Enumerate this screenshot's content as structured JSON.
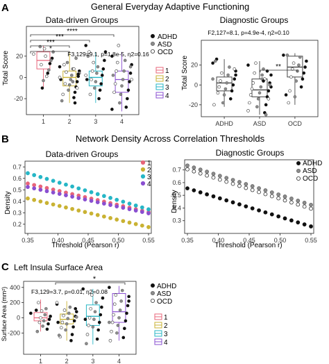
{
  "figure": {
    "panel_a": {
      "letter": "A",
      "heading": "General Everyday Adaptive Functioning",
      "left": {
        "title": "Data-driven Groups",
        "ylabel": "Total Score",
        "stats": "F3,129=9.1, p=1.8e-5, η2=0.16",
        "significance": [
          "****",
          "***",
          "***",
          "*"
        ]
      },
      "right": {
        "title": "Diagnostic Groups",
        "ylabel": "Total Score",
        "stats": "F2,127=8.1, p=4.9e-4, η2=0.10",
        "significance": [
          "**"
        ]
      }
    },
    "panel_b": {
      "letter": "B",
      "heading": "Network Density Across Correlation Thresholds",
      "left": {
        "title": "Data-driven Groups",
        "xlabel": "Threshold (Pearson r)",
        "ylabel": "Density"
      },
      "right": {
        "title": "Diagnostic Groups",
        "xlabel": "Threshold (Pearson r)",
        "ylabel": "Density"
      }
    },
    "panel_c": {
      "letter": "C",
      "heading": "Left Insula Surface Area",
      "ylabel": "Surface Area (mm²)",
      "stats": "F3,129=3.7, p=0.01, η2=0.08",
      "significance": [
        "*"
      ]
    },
    "legends": {
      "dx": [
        "ADHD",
        "ASD",
        "OCD"
      ],
      "groups": [
        "1",
        "2",
        "3",
        "4"
      ]
    },
    "colors": {
      "g1": "#e8657a",
      "g2": "#c9b233",
      "g3": "#26b6c6",
      "g4": "#8a4fd0",
      "adhd": "#111111",
      "asd": "#8c8c8c",
      "ocd": "#ffffff"
    }
  },
  "chart_data": [
    {
      "id": "A-left",
      "type": "box",
      "title": "Data-driven Groups",
      "ylabel": "Total Score",
      "categories": [
        "1",
        "2",
        "3",
        "4"
      ],
      "ylim": [
        -35,
        48
      ],
      "yticks": [
        -20,
        0,
        20
      ],
      "boxes": [
        {
          "group": "1",
          "q1": 8,
          "median": 16,
          "q3": 24,
          "min": -10,
          "max": 30
        },
        {
          "group": "2",
          "q1": -8,
          "median": 0,
          "q3": 6,
          "min": -24,
          "max": 24
        },
        {
          "group": "3",
          "q1": -8,
          "median": 0,
          "q3": 6,
          "min": -24,
          "max": 24
        },
        {
          "group": "4",
          "q1": -14,
          "median": -2,
          "q3": 6,
          "min": -32,
          "max": 24
        }
      ],
      "points": {
        "1": [
          [
            2,
            22
          ],
          [
            1,
            24
          ],
          [
            0,
            18
          ],
          [
            1,
            16
          ],
          [
            0,
            13
          ],
          [
            1,
            7
          ],
          [
            0,
            4
          ],
          [
            2,
            1
          ],
          [
            2,
            20
          ],
          [
            2,
            27
          ],
          [
            1,
            -3
          ],
          [
            0,
            -10
          ],
          [
            2,
            12
          ],
          [
            1,
            29
          ]
        ],
        "2": [
          [
            0,
            10
          ],
          [
            0,
            6
          ],
          [
            0,
            1
          ],
          [
            0,
            -4
          ],
          [
            0,
            -9
          ],
          [
            0,
            -14
          ],
          [
            0,
            -19
          ],
          [
            1,
            8
          ],
          [
            1,
            2
          ],
          [
            1,
            -2
          ],
          [
            1,
            -7
          ],
          [
            1,
            -12
          ],
          [
            1,
            14
          ],
          [
            2,
            5
          ],
          [
            2,
            -6
          ],
          [
            2,
            12
          ],
          [
            2,
            -16
          ],
          [
            1,
            -22
          ],
          [
            0,
            -2
          ],
          [
            2,
            0
          ],
          [
            1,
            4
          ],
          [
            0,
            3
          ],
          [
            2,
            -10
          ],
          [
            1,
            18
          ],
          [
            0,
            -24
          ],
          [
            2,
            8
          ],
          [
            1,
            -4
          ]
        ],
        "3": [
          [
            0,
            30
          ],
          [
            0,
            24
          ],
          [
            0,
            16
          ],
          [
            0,
            8
          ],
          [
            0,
            2
          ],
          [
            0,
            -6
          ],
          [
            0,
            -12
          ],
          [
            0,
            -20
          ],
          [
            1,
            10
          ],
          [
            1,
            4
          ],
          [
            1,
            -4
          ],
          [
            1,
            -10
          ],
          [
            2,
            14
          ],
          [
            2,
            6
          ],
          [
            2,
            -2
          ],
          [
            2,
            -16
          ],
          [
            2,
            24
          ],
          [
            1,
            20
          ],
          [
            0,
            -2
          ],
          [
            2,
            2
          ]
        ],
        "4": [
          [
            0,
            20
          ],
          [
            0,
            12
          ],
          [
            0,
            4
          ],
          [
            0,
            -4
          ],
          [
            0,
            -12
          ],
          [
            0,
            -20
          ],
          [
            0,
            -28
          ],
          [
            1,
            16
          ],
          [
            1,
            6
          ],
          [
            1,
            -2
          ],
          [
            1,
            -8
          ],
          [
            1,
            -16
          ],
          [
            1,
            -24
          ],
          [
            2,
            30
          ],
          [
            2,
            14
          ],
          [
            2,
            6
          ],
          [
            2,
            -6
          ],
          [
            2,
            -14
          ],
          [
            1,
            2
          ],
          [
            0,
            -30
          ],
          [
            2,
            -2
          ],
          [
            1,
            10
          ]
        ]
      }
    },
    {
      "id": "A-right",
      "type": "box",
      "title": "Diagnostic Groups",
      "ylabel": "Total Score",
      "categories": [
        "ADHD",
        "ASD",
        "OCD"
      ],
      "ylim": [
        -32,
        45
      ],
      "yticks": [
        -20,
        0,
        20
      ],
      "boxes": [
        {
          "group": "ADHD",
          "q1": -6,
          "median": 2,
          "q3": 8,
          "min": -22,
          "max": 26
        },
        {
          "group": "ASD",
          "q1": -12,
          "median": -5,
          "q3": 6,
          "min": -30,
          "max": 24
        },
        {
          "group": "OCD",
          "q1": 8,
          "median": 18,
          "q3": 29,
          "min": -20,
          "max": 32
        }
      ],
      "points": {
        "ADHD": [
          [
            0,
            22
          ],
          [
            0,
            14
          ],
          [
            0,
            6
          ],
          [
            0,
            0
          ],
          [
            0,
            -6
          ],
          [
            0,
            -14
          ],
          [
            1,
            18
          ],
          [
            1,
            10
          ],
          [
            1,
            2
          ],
          [
            1,
            -4
          ],
          [
            1,
            -10
          ],
          [
            1,
            -18
          ],
          [
            2,
            12
          ],
          [
            2,
            4
          ],
          [
            2,
            -2
          ],
          [
            2,
            -8
          ],
          [
            0,
            26
          ],
          [
            1,
            24
          ],
          [
            2,
            -20
          ],
          [
            1,
            6
          ],
          [
            0,
            10
          ],
          [
            2,
            16
          ]
        ],
        "ASD": [
          [
            0,
            20
          ],
          [
            0,
            10
          ],
          [
            0,
            2
          ],
          [
            0,
            -6
          ],
          [
            0,
            -12
          ],
          [
            0,
            -20
          ],
          [
            0,
            -28
          ],
          [
            1,
            16
          ],
          [
            1,
            6
          ],
          [
            1,
            -2
          ],
          [
            1,
            -8
          ],
          [
            1,
            -14
          ],
          [
            1,
            -22
          ],
          [
            2,
            22
          ],
          [
            2,
            12
          ],
          [
            2,
            2
          ],
          [
            2,
            -4
          ],
          [
            2,
            -10
          ],
          [
            2,
            -18
          ],
          [
            2,
            -26
          ],
          [
            0,
            -2
          ],
          [
            1,
            0
          ],
          [
            2,
            -14
          ],
          [
            0,
            14
          ],
          [
            1,
            -30
          ],
          [
            2,
            6
          ],
          [
            0,
            4
          ],
          [
            1,
            10
          ]
        ],
        "OCD": [
          [
            0,
            30
          ],
          [
            0,
            24
          ],
          [
            0,
            18
          ],
          [
            0,
            12
          ],
          [
            0,
            6
          ],
          [
            0,
            -2
          ],
          [
            1,
            28
          ],
          [
            1,
            20
          ],
          [
            1,
            14
          ],
          [
            1,
            4
          ],
          [
            1,
            -12
          ],
          [
            2,
            22
          ],
          [
            2,
            16
          ],
          [
            2,
            8
          ],
          [
            2,
            -6
          ],
          [
            2,
            -18
          ],
          [
            1,
            30
          ],
          [
            0,
            -10
          ]
        ]
      }
    },
    {
      "id": "B-left",
      "type": "scatter",
      "title": "Data-driven Groups",
      "xlabel": "Threshold (Pearson r)",
      "ylabel": "Density",
      "xlim": [
        0.35,
        0.55
      ],
      "xticks": [
        0.35,
        0.4,
        0.45,
        0.5,
        0.55
      ],
      "ylim": [
        0.12,
        0.75
      ],
      "yticks": [
        0.2,
        0.3,
        0.4,
        0.5,
        0.6,
        0.7
      ],
      "series": [
        {
          "name": "1",
          "start": 0.555,
          "end": 0.305
        },
        {
          "name": "2",
          "start": 0.425,
          "end": 0.175
        },
        {
          "name": "3",
          "start": 0.645,
          "end": 0.33
        },
        {
          "name": "4",
          "start": 0.525,
          "end": 0.295
        }
      ],
      "n_points": 20
    },
    {
      "id": "B-right",
      "type": "scatter",
      "title": "Diagnostic Groups",
      "xlabel": "Threshold (Pearson r)",
      "ylabel": "Density",
      "xlim": [
        0.35,
        0.55
      ],
      "xticks": [
        0.35,
        0.4,
        0.45,
        0.5,
        0.55
      ],
      "ylim": [
        0.2,
        0.78
      ],
      "yticks": [
        0.3,
        0.4,
        0.5,
        0.6,
        0.7
      ],
      "series": [
        {
          "name": "ADHD",
          "start": 0.555,
          "end": 0.255
        },
        {
          "name": "ASD",
          "start": 0.735,
          "end": 0.425
        },
        {
          "name": "OCD",
          "start": 0.705,
          "end": 0.395
        }
      ],
      "n_points": 20
    },
    {
      "id": "C",
      "type": "box",
      "title": "Left Insula Surface Area",
      "ylabel": "Surface Area (mm²)",
      "categories": [
        "1",
        "2",
        "3",
        "4"
      ],
      "ylim": [
        -480,
        480
      ],
      "yticks": [
        -200,
        0,
        200,
        400
      ],
      "boxes": [
        {
          "group": "1",
          "q1": -40,
          "median": 0,
          "q3": 70,
          "min": -180,
          "max": 240
        },
        {
          "group": "2",
          "q1": -80,
          "median": -20,
          "q3": 50,
          "min": -300,
          "max": 220
        },
        {
          "group": "3",
          "q1": -100,
          "median": 20,
          "q3": 170,
          "min": -350,
          "max": 380
        },
        {
          "group": "4",
          "q1": -60,
          "median": 80,
          "q3": 320,
          "min": -300,
          "max": 420
        }
      ],
      "points": {
        "1": [
          [
            0,
            60
          ],
          [
            0,
            20
          ],
          [
            0,
            -20
          ],
          [
            0,
            -80
          ],
          [
            0,
            -150
          ],
          [
            1,
            120
          ],
          [
            1,
            40
          ],
          [
            1,
            -40
          ],
          [
            1,
            -110
          ],
          [
            2,
            90
          ],
          [
            2,
            0
          ],
          [
            2,
            -60
          ],
          [
            2,
            200
          ],
          [
            1,
            -180
          ],
          [
            0,
            100
          ]
        ],
        "2": [
          [
            0,
            180
          ],
          [
            0,
            80
          ],
          [
            0,
            20
          ],
          [
            0,
            -40
          ],
          [
            0,
            -120
          ],
          [
            0,
            -220
          ],
          [
            0,
            -300
          ],
          [
            1,
            140
          ],
          [
            1,
            60
          ],
          [
            1,
            -10
          ],
          [
            1,
            -80
          ],
          [
            1,
            -160
          ],
          [
            2,
            100
          ],
          [
            2,
            30
          ],
          [
            2,
            -60
          ],
          [
            2,
            -130
          ],
          [
            2,
            -250
          ],
          [
            1,
            -230
          ],
          [
            0,
            -60
          ],
          [
            2,
            200
          ],
          [
            1,
            10
          ],
          [
            0,
            120
          ]
        ],
        "3": [
          [
            0,
            380
          ],
          [
            0,
            260
          ],
          [
            0,
            140
          ],
          [
            0,
            40
          ],
          [
            0,
            -60
          ],
          [
            0,
            -160
          ],
          [
            0,
            -280
          ],
          [
            1,
            200
          ],
          [
            1,
            80
          ],
          [
            1,
            -20
          ],
          [
            1,
            -120
          ],
          [
            2,
            300
          ],
          [
            2,
            120
          ],
          [
            2,
            0
          ],
          [
            2,
            -100
          ],
          [
            2,
            -220
          ],
          [
            1,
            -340
          ],
          [
            0,
            -20
          ]
        ],
        "4": [
          [
            0,
            400
          ],
          [
            0,
            280
          ],
          [
            0,
            160
          ],
          [
            0,
            60
          ],
          [
            0,
            -40
          ],
          [
            0,
            -140
          ],
          [
            0,
            -260
          ],
          [
            1,
            360
          ],
          [
            1,
            220
          ],
          [
            1,
            100
          ],
          [
            1,
            0
          ],
          [
            1,
            -100
          ],
          [
            1,
            -200
          ],
          [
            2,
            300
          ],
          [
            2,
            180
          ],
          [
            2,
            40
          ],
          [
            2,
            -60
          ],
          [
            2,
            -180
          ],
          [
            2,
            -300
          ],
          [
            1,
            -60
          ],
          [
            0,
            220
          ]
        ]
      }
    }
  ]
}
